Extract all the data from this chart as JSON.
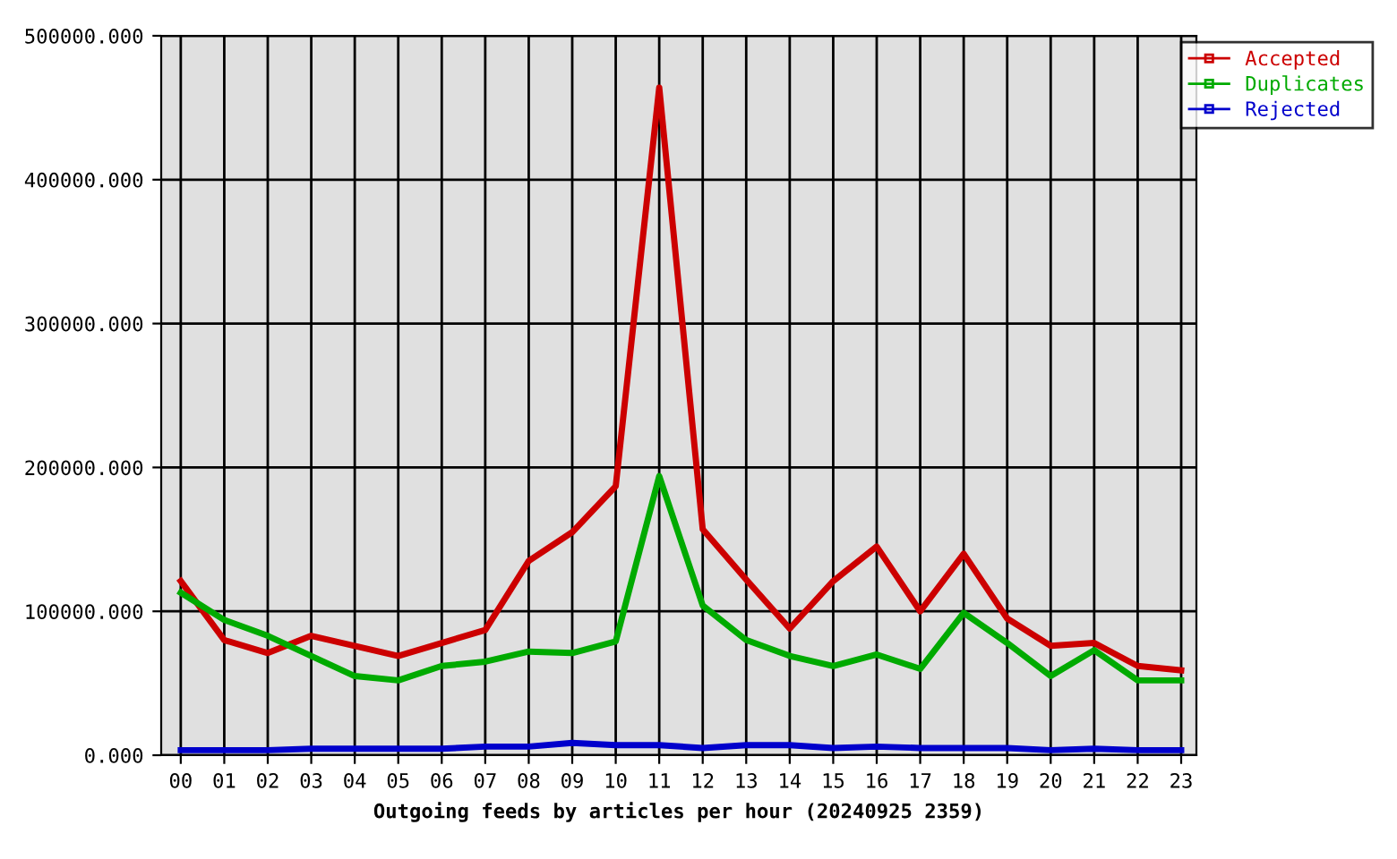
{
  "chart_data": {
    "type": "line",
    "xlabel": "Outgoing feeds by articles per hour (20240925 2359)",
    "categories": [
      "00",
      "01",
      "02",
      "03",
      "04",
      "05",
      "06",
      "07",
      "08",
      "09",
      "10",
      "11",
      "12",
      "13",
      "14",
      "15",
      "16",
      "17",
      "18",
      "19",
      "20",
      "21",
      "22",
      "23"
    ],
    "series": [
      {
        "name": "Accepted",
        "color": "#cc0000",
        "values": [
          121000,
          80000,
          71000,
          83000,
          76000,
          69000,
          78000,
          87000,
          135000,
          155000,
          187000,
          464000,
          157000,
          122000,
          88000,
          121000,
          145000,
          100000,
          140000,
          95000,
          76000,
          78000,
          62000,
          59000
        ]
      },
      {
        "name": "Duplicates",
        "color": "#00aa00",
        "values": [
          113000,
          94000,
          83000,
          69000,
          55000,
          52000,
          62000,
          65000,
          72000,
          71000,
          79000,
          194000,
          104000,
          80000,
          69000,
          62000,
          70000,
          60000,
          99000,
          78000,
          55000,
          73000,
          52000,
          52000
        ]
      },
      {
        "name": "Rejected",
        "color": "#0000cc",
        "values": [
          3500,
          3500,
          3500,
          4500,
          4500,
          4500,
          4500,
          6000,
          6000,
          8500,
          7000,
          7000,
          5000,
          7000,
          7000,
          5000,
          6000,
          5000,
          5000,
          5000,
          3500,
          4500,
          3500,
          3500
        ]
      }
    ],
    "ylim": [
      0,
      500000
    ],
    "yticks": [
      {
        "value": 0,
        "label": "0.000"
      },
      {
        "value": 100000,
        "label": "100000.000"
      },
      {
        "value": 200000,
        "label": "200000.000"
      },
      {
        "value": 300000,
        "label": "300000.000"
      },
      {
        "value": 400000,
        "label": "400000.000"
      },
      {
        "value": 500000,
        "label": "500000.000"
      }
    ],
    "grid": true,
    "legend": "top right",
    "marker": "none",
    "line_style": "solid"
  }
}
